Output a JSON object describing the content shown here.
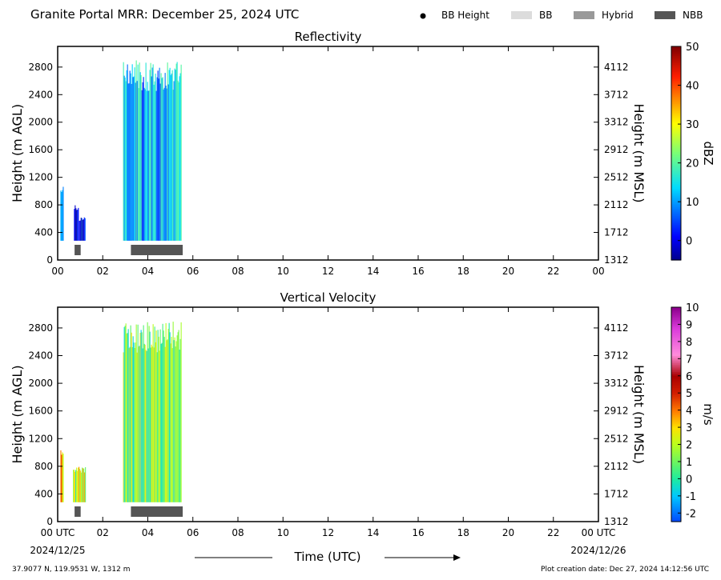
{
  "header": {
    "title": "Granite Portal MRR:  December 25, 2024 UTC",
    "legend": [
      {
        "label": "BB Height",
        "kind": "dot",
        "color": "#000000"
      },
      {
        "label": "BB",
        "kind": "box",
        "color": "#dcdcdc"
      },
      {
        "label": "Hybrid",
        "kind": "box",
        "color": "#999999"
      },
      {
        "label": "NBB",
        "kind": "box",
        "color": "#555555"
      }
    ]
  },
  "footer": {
    "location": "37.9077 N, 119.9531 W, 1312 m",
    "creation": "Plot creation date: Dec 27, 2024 14:12:56 UTC",
    "xlabel": "Time (UTC)",
    "start_date": "2024/12/25",
    "end_date": "2024/12/26"
  },
  "chart_data": [
    {
      "type": "heatmap",
      "title": "Reflectivity",
      "ylabel": "Height (m AGL)",
      "ylabel_right": "Height (m MSL)",
      "x_ticks": [
        "00",
        "02",
        "04",
        "06",
        "08",
        "10",
        "12",
        "14",
        "16",
        "18",
        "20",
        "22",
        "00"
      ],
      "xlim": [
        0,
        24
      ],
      "y_ticks": [
        0,
        400,
        800,
        1200,
        1600,
        2000,
        2400,
        2800
      ],
      "y_ticks_right": [
        1312,
        1712,
        2112,
        2512,
        2912,
        3312,
        3712,
        4112
      ],
      "ylim": [
        0,
        3100
      ],
      "colorbar": {
        "label": "dBZ",
        "min": -5,
        "max": 50,
        "ticks": [
          0,
          10,
          20,
          30,
          40,
          50
        ],
        "palette": "jet"
      },
      "precip_regions": [
        {
          "t0": 0.12,
          "t1": 0.25,
          "hb": 280,
          "ht": 1100,
          "value": 4
        },
        {
          "t0": 0.72,
          "t1": 0.95,
          "hb": 280,
          "ht": 800,
          "value": 0
        },
        {
          "t0": 0.95,
          "t1": 1.25,
          "hb": 280,
          "ht": 620,
          "value": -2
        },
        {
          "t0": 2.9,
          "t1": 5.5,
          "hb": 280,
          "ht": 2900,
          "value": 12
        }
      ],
      "bright_band": [
        {
          "type": "NBB",
          "t0": 0.75,
          "t1": 1.02
        },
        {
          "type": "NBB",
          "t0": 3.25,
          "t1": 5.55
        }
      ]
    },
    {
      "type": "heatmap",
      "title": "Vertical Velocity",
      "ylabel": "Height (m AGL)",
      "ylabel_right": "Height (m MSL)",
      "x_ticks": [
        "00 UTC",
        "02",
        "04",
        "06",
        "08",
        "10",
        "12",
        "14",
        "16",
        "18",
        "20",
        "22",
        "00 UTC"
      ],
      "xlim": [
        0,
        24
      ],
      "y_ticks": [
        0,
        400,
        800,
        1200,
        1600,
        2000,
        2400,
        2800
      ],
      "y_ticks_right": [
        1312,
        1712,
        2112,
        2512,
        2912,
        3312,
        3712,
        4112
      ],
      "ylim": [
        0,
        3100
      ],
      "colorbar": {
        "label": "m/s",
        "min": -2.5,
        "max": 10,
        "ticks": [
          -2,
          -1,
          0,
          1,
          2,
          3,
          4,
          5,
          6,
          7,
          8,
          9,
          10
        ],
        "palette": "velocity"
      },
      "precip_regions": [
        {
          "t0": 0.12,
          "t1": 0.25,
          "hb": 280,
          "ht": 1100,
          "value": 3
        },
        {
          "t0": 0.68,
          "t1": 1.25,
          "hb": 280,
          "ht": 800,
          "value": 1.8
        },
        {
          "t0": 2.9,
          "t1": 5.5,
          "hb": 280,
          "ht": 2900,
          "value": 1
        }
      ],
      "bright_band": [
        {
          "type": "NBB",
          "t0": 0.75,
          "t1": 1.02
        },
        {
          "type": "NBB",
          "t0": 3.25,
          "t1": 5.55
        }
      ]
    }
  ]
}
